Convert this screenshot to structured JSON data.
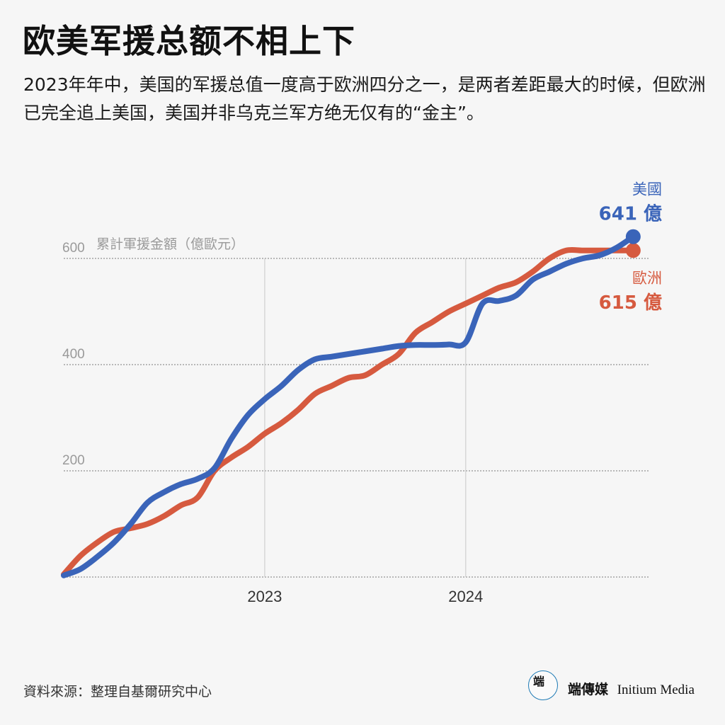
{
  "title": "欧美军援总额不相上下",
  "subtitle": "2023年年中，美国的军援总值一度高于欧洲四分之一，是两者差距最大的时候，但欧洲已完全追上美国，美国并非乌克兰军方绝无仅有的“金主”。",
  "source": "資料來源：整理自基爾研究中心",
  "logo": {
    "mark": "端",
    "chinese": "端傳媒",
    "english": "Initium Media"
  },
  "colors": {
    "us": "#3a64b9",
    "eu": "#d65a3f",
    "grid": "#bdbdbd",
    "background": "#f6f6f6"
  },
  "chart_data": {
    "type": "line",
    "unit_label": "累計軍援金額（億歐元）",
    "xlim": [
      "2022-01",
      "2024-12"
    ],
    "ylim": [
      0,
      640
    ],
    "yticks": [
      0,
      200,
      400,
      600
    ],
    "ytick_labels": [
      "",
      "200",
      "400",
      "600"
    ],
    "xticks": [
      "2023-01",
      "2024-01"
    ],
    "xtick_labels": [
      "2023",
      "2024"
    ],
    "grid": true,
    "x": [
      "2022-01",
      "2022-02",
      "2022-03",
      "2022-04",
      "2022-05",
      "2022-06",
      "2022-07",
      "2022-08",
      "2022-09",
      "2022-10",
      "2022-11",
      "2022-12",
      "2023-01",
      "2023-02",
      "2023-03",
      "2023-04",
      "2023-05",
      "2023-06",
      "2023-07",
      "2023-08",
      "2023-09",
      "2023-10",
      "2023-11",
      "2023-12",
      "2024-01",
      "2024-02",
      "2024-03",
      "2024-04",
      "2024-05",
      "2024-06",
      "2024-07",
      "2024-08",
      "2024-09",
      "2024-10",
      "2024-11"
    ],
    "series": [
      {
        "name": "美國",
        "color": "#3a64b9",
        "end_value_label": "641 億",
        "values": [
          3,
          15,
          38,
          65,
          100,
          140,
          160,
          175,
          185,
          205,
          260,
          305,
          335,
          360,
          390,
          410,
          415,
          420,
          425,
          430,
          435,
          437,
          437,
          438,
          442,
          515,
          520,
          530,
          560,
          575,
          590,
          600,
          606,
          620,
          641
        ]
      },
      {
        "name": "歐洲",
        "color": "#d65a3f",
        "end_value_label": "615 億",
        "values": [
          5,
          40,
          65,
          85,
          92,
          100,
          115,
          135,
          150,
          200,
          225,
          245,
          270,
          290,
          315,
          345,
          360,
          375,
          380,
          400,
          420,
          460,
          480,
          500,
          515,
          530,
          545,
          555,
          575,
          600,
          615,
          615,
          615,
          615,
          615
        ]
      }
    ]
  }
}
